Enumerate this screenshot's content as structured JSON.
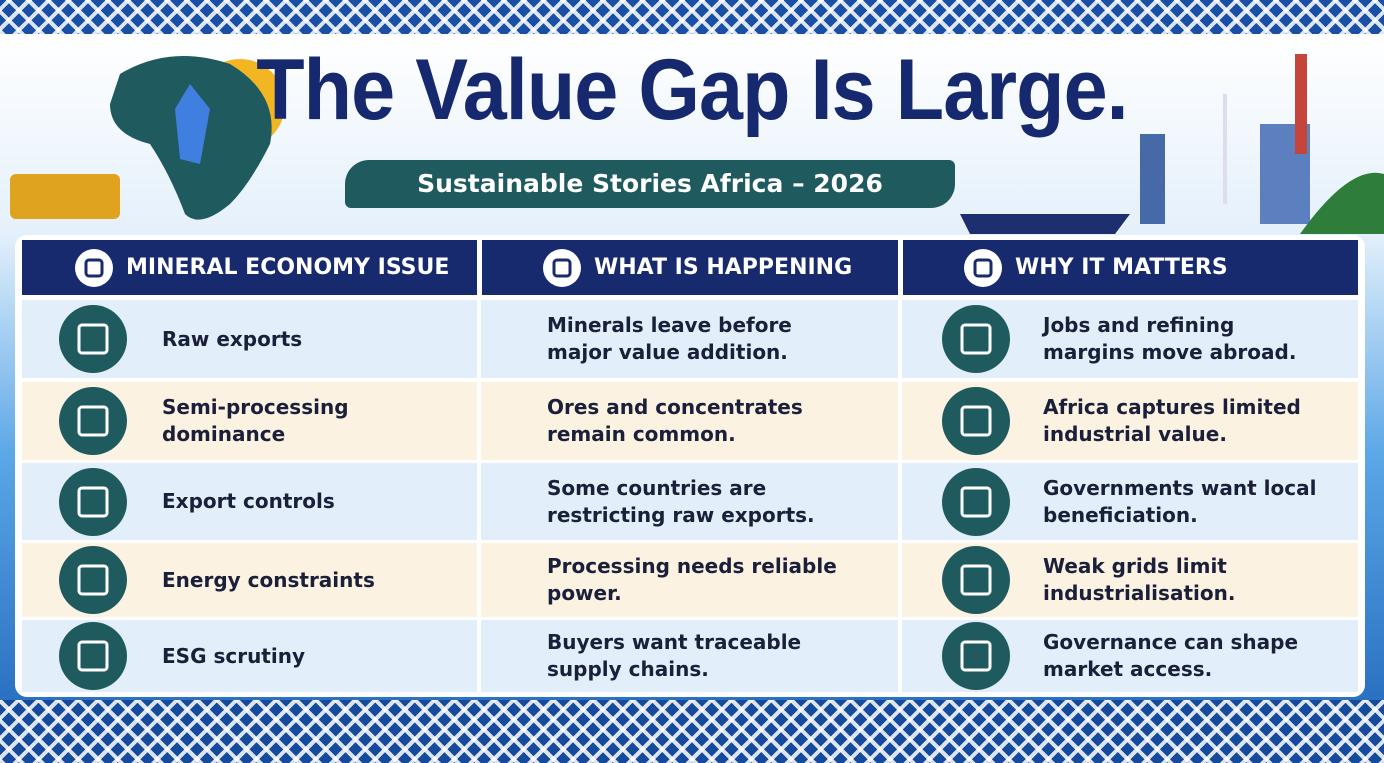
{
  "header": {
    "title": "The Value Gap Is Large.",
    "subtitle": "Sustainable Stories Africa – 2026"
  },
  "table": {
    "columns": [
      "MINERAL ECONOMY ISSUE",
      "WHAT IS HAPPENING",
      "WHY IT MATTERS"
    ],
    "rows": [
      [
        "Raw exports",
        "Minerals leave before major value addition.",
        "Jobs and refining margins move abroad."
      ],
      [
        "Semi-processing dominance",
        "Ores and concentrates remain common.",
        "Africa captures limited industrial value."
      ],
      [
        "Export controls",
        "Some countries are restricting raw exports.",
        "Governments want local beneficiation."
      ],
      [
        "Energy constraints",
        "Processing needs reliable power.",
        "Weak grids limit industrialisation."
      ],
      [
        "ESG scrutiny",
        "Buyers want traceable supply chains.",
        "Governance can shape market access."
      ]
    ]
  }
}
